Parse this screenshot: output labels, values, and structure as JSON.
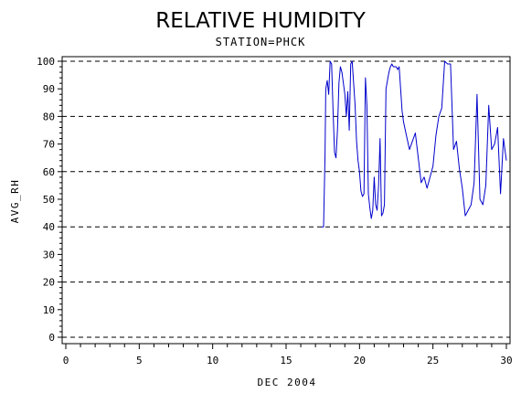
{
  "chart_data": {
    "type": "line",
    "title": "RELATIVE HUMIDITY",
    "subtitle": "STATION=PHCK",
    "xlabel": "DEC 2004",
    "ylabel": "AVG_RH",
    "xlim": [
      0,
      30
    ],
    "ylim": [
      0,
      100
    ],
    "x_ticks": [
      0,
      5,
      10,
      15,
      20,
      25,
      30
    ],
    "y_ticks": [
      0,
      10,
      20,
      30,
      40,
      50,
      60,
      70,
      80,
      90,
      100
    ],
    "grid_y": [
      0,
      20,
      40,
      60,
      80,
      100
    ],
    "grid_style": "dashed horizontal",
    "series_color": "#0000cc",
    "series": [
      {
        "x": [
          17.4,
          17.55,
          17.65,
          17.7,
          17.8,
          17.9,
          18.0,
          18.1,
          18.2,
          18.3,
          18.4,
          18.5,
          18.6,
          18.7,
          18.8,
          18.9,
          19.0,
          19.1,
          19.2,
          19.3,
          19.4,
          19.5,
          19.6,
          19.7,
          19.8,
          19.9,
          20.0,
          20.1,
          20.2,
          20.3,
          20.4,
          20.5,
          20.6,
          20.7,
          20.8,
          20.9,
          21.0,
          21.1,
          21.2,
          21.3,
          21.4,
          21.5,
          21.6,
          21.7,
          21.8,
          21.9,
          22.0,
          22.1,
          22.2,
          22.3,
          22.4,
          22.5,
          22.6,
          22.7,
          22.8,
          22.9,
          23.0,
          23.2,
          23.4,
          23.6,
          23.8,
          24.0,
          24.2,
          24.4,
          24.6,
          24.8,
          25.0,
          25.2,
          25.4,
          25.6,
          25.8,
          26.0,
          26.2,
          26.4,
          26.6,
          26.8,
          27.0,
          27.2,
          27.4,
          27.6,
          27.8,
          28.0,
          28.2,
          28.4,
          28.6,
          28.8,
          29.0,
          29.2,
          29.4,
          29.6,
          29.8,
          30.0
        ],
        "values": [
          40,
          40,
          66,
          90,
          93,
          88,
          100,
          99,
          82,
          67,
          65,
          75,
          92,
          98,
          96,
          92,
          88,
          80,
          89,
          75,
          99,
          100,
          92,
          84,
          71,
          64,
          60,
          53,
          51,
          52,
          94,
          84,
          52,
          47,
          43,
          46,
          58,
          48,
          46,
          55,
          72,
          44,
          45,
          48,
          90,
          93,
          96,
          98,
          99,
          98,
          98,
          98,
          97,
          98,
          90,
          82,
          78,
          73,
          68,
          71,
          74,
          65,
          56,
          58,
          54,
          58,
          62,
          73,
          80,
          83,
          100,
          99,
          99,
          68,
          71,
          61,
          54,
          44,
          46,
          48,
          56,
          88,
          50,
          48,
          55,
          84,
          68,
          70,
          76,
          52,
          72,
          64
        ]
      }
    ]
  }
}
